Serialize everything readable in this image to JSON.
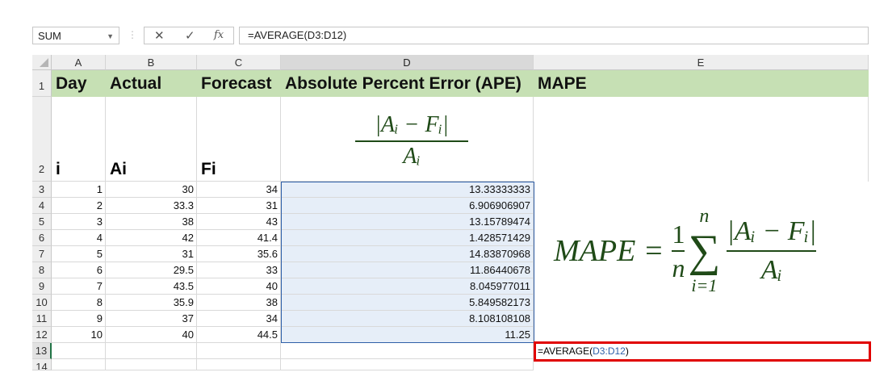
{
  "formula_bar": {
    "name_box": "SUM",
    "cancel_icon": "✕",
    "enter_icon": "✓",
    "fx_label": "fx",
    "formula": "=AVERAGE(D3:D12)"
  },
  "columns": [
    "A",
    "B",
    "C",
    "D",
    "E"
  ],
  "rows": [
    "1",
    "2",
    "3",
    "4",
    "5",
    "6",
    "7",
    "8",
    "9",
    "10",
    "11",
    "12",
    "13",
    "14"
  ],
  "header_row": {
    "a": "Day",
    "b": "Actual",
    "c": "Forecast",
    "d": "Absolute Percent Error (APE)",
    "e": "MAPE"
  },
  "row2": {
    "a": "i",
    "b": "Ai",
    "c": "Fi"
  },
  "ape_formula": {
    "numerator": "|Aᵢ − Fᵢ|",
    "denominator": "Aᵢ"
  },
  "mape_formula": {
    "lhs": "MAPE =",
    "one": "1",
    "n": "n",
    "sigma": "∑",
    "upper": "n",
    "lower": "i=1",
    "numerator": "|Aᵢ − Fᵢ|",
    "denominator": "Aᵢ"
  },
  "data": [
    [
      "1",
      "30",
      "34",
      "13.33333333"
    ],
    [
      "2",
      "33.3",
      "31",
      "6.906906907"
    ],
    [
      "3",
      "38",
      "43",
      "13.15789474"
    ],
    [
      "4",
      "42",
      "41.4",
      "1.428571429"
    ],
    [
      "5",
      "31",
      "35.6",
      "14.83870968"
    ],
    [
      "6",
      "29.5",
      "33",
      "11.86440678"
    ],
    [
      "7",
      "43.5",
      "40",
      "8.045977011"
    ],
    [
      "8",
      "35.9",
      "38",
      "5.849582173"
    ],
    [
      "9",
      "37",
      "34",
      "8.108108108"
    ],
    [
      "10",
      "40",
      "44.5",
      "11.25"
    ]
  ],
  "active_cell": {
    "prefix": "=AVERAGE(",
    "ref": "D3:D12",
    "suffix": ")"
  },
  "colors": {
    "header_fill": "#c6e0b4",
    "selection_fill": "#e6eef8",
    "selection_border": "#2e5fa8",
    "active_border": "#e00000",
    "formula_green": "#1f4a17"
  }
}
